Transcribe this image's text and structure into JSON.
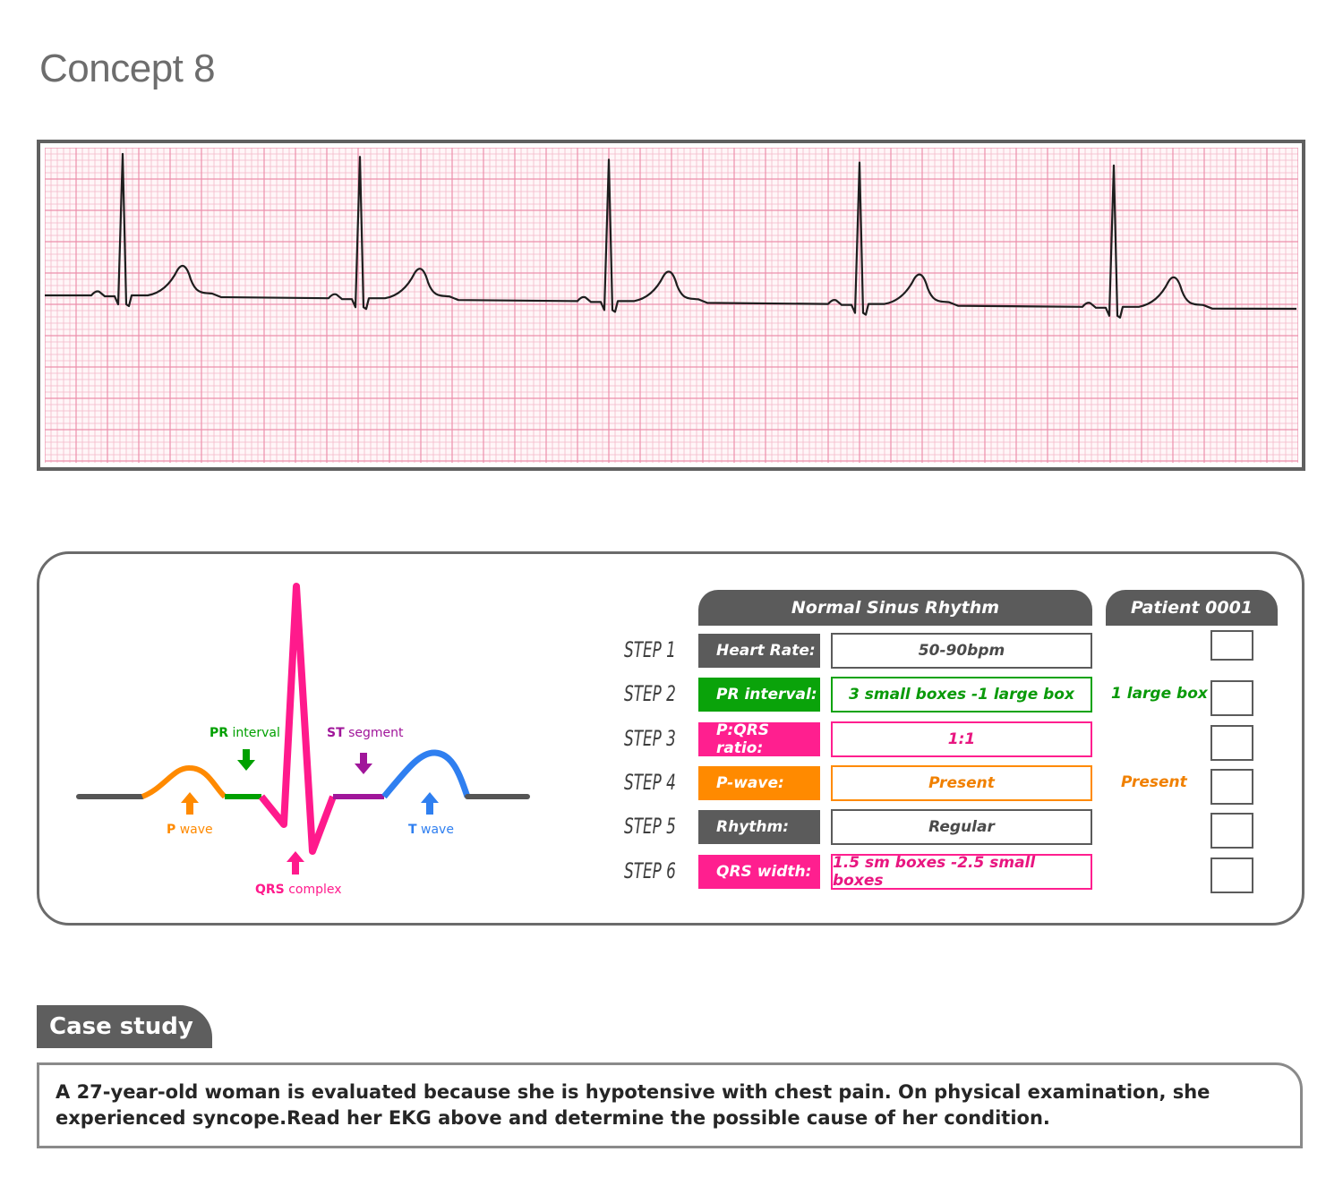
{
  "title": "Concept 8",
  "diagram": {
    "labels": {
      "p_wave_bold": "P",
      "p_wave_rest": " wave",
      "pr_bold": "PR",
      "pr_rest": " interval",
      "qrs_bold": "QRS",
      "qrs_rest": " complex",
      "st_bold": "ST",
      "st_rest": " segment",
      "t_bold": "T",
      "t_rest": " wave"
    },
    "colors": {
      "baseline": "#555555",
      "p_wave": "#ff8a00",
      "pr_interval": "#00a000",
      "qrs_complex": "#ff1a8c",
      "st_segment": "#a0169a",
      "t_wave": "#2f7ff0"
    }
  },
  "table": {
    "header_main": "Normal Sinus Rhythm",
    "header_patient": "Patient 0001",
    "rows": [
      {
        "step": "STEP 1",
        "param": "Heart Rate:",
        "value": "50-90bpm",
        "note": "",
        "color": "#5b5b5b",
        "value_color": "#4a4a4a"
      },
      {
        "step": "STEP 2",
        "param": "PR interval:",
        "value": "3 small boxes -1 large box",
        "note": "1 large box",
        "color": "#0aa30a",
        "value_color": "#0a9a0a"
      },
      {
        "step": "STEP 3",
        "param": "P:QRS ratio:",
        "value": "1:1",
        "note": "",
        "color": "#ff1f8f",
        "value_color": "#e81680"
      },
      {
        "step": "STEP 4",
        "param": "P-wave:",
        "value": "Present",
        "note": "Present",
        "color": "#ff8a00",
        "value_color": "#f08000"
      },
      {
        "step": "STEP 5",
        "param": "Rhythm:",
        "value": "Regular",
        "note": "",
        "color": "#5b5b5b",
        "value_color": "#4a4a4a"
      },
      {
        "step": "STEP 6",
        "param": "QRS width:",
        "value": "1.5 sm boxes -2.5 small boxes",
        "note": "",
        "color": "#ff1f8f",
        "value_color": "#e81680"
      }
    ]
  },
  "case_study": {
    "tab_label": "Case study",
    "text": "A 27-year-old woman is evaluated because she is hypotensive with chest pain. On physical examination, she experienced syncope.Read her EKG above and determine the possible cause of her condition."
  }
}
